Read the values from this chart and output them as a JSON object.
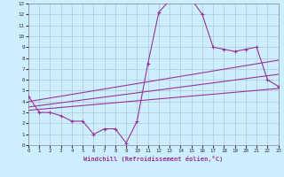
{
  "background_color": "#cceeff",
  "grid_color": "#b0c8d0",
  "line_color": "#993399",
  "marker": "+",
  "xlim": [
    0,
    23
  ],
  "ylim": [
    0,
    13
  ],
  "xticks": [
    0,
    1,
    2,
    3,
    4,
    5,
    6,
    7,
    8,
    9,
    10,
    11,
    12,
    13,
    14,
    15,
    16,
    17,
    18,
    19,
    20,
    21,
    22,
    23
  ],
  "yticks": [
    0,
    1,
    2,
    3,
    4,
    5,
    6,
    7,
    8,
    9,
    10,
    11,
    12,
    13
  ],
  "xlabel": "Windchill (Refroidissement éolien,°C)",
  "curve1_x": [
    0,
    1,
    2,
    3,
    4,
    5,
    6,
    7,
    8,
    9,
    10,
    11,
    12,
    13,
    14,
    15,
    16,
    17,
    18,
    19,
    20,
    21,
    22,
    23
  ],
  "curve1_y": [
    4.5,
    3.0,
    3.0,
    2.7,
    2.2,
    2.2,
    1.0,
    1.5,
    1.5,
    0.2,
    2.2,
    7.5,
    12.2,
    13.3,
    13.5,
    13.4,
    12.0,
    9.0,
    8.8,
    8.6,
    8.8,
    9.0,
    6.0,
    5.4
  ],
  "line1_x": [
    0,
    23
  ],
  "line1_y": [
    3.2,
    5.2
  ],
  "line2_x": [
    0,
    23
  ],
  "line2_y": [
    3.5,
    6.5
  ],
  "line3_x": [
    0,
    23
  ],
  "line3_y": [
    4.0,
    7.8
  ]
}
